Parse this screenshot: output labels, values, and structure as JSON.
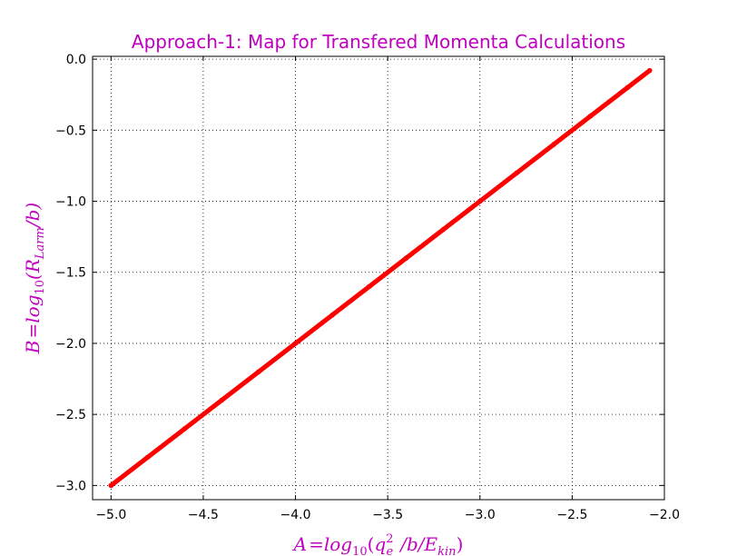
{
  "colors": {
    "title": "#bf00bf",
    "axis_label": "#bf00bf",
    "series": "#ff0000",
    "grid": "#000000",
    "frame": "#000000",
    "background": "#ffffff"
  },
  "chart_data": {
    "type": "scatter",
    "title": "Approach-1: Map for Transfered Momenta Calculations",
    "xlabel": "A=log10(qe2 /b/Ekin)",
    "ylabel": "B=log10(RLarm/b)",
    "xlabel_parts": {
      "lhs": "A",
      "eq": "=",
      "fn": "log",
      "fn_sub": "10",
      "open": "(",
      "q": "q",
      "q_sup": "2",
      "q_sub": "e",
      "rest": "/b/E",
      "e_sub": "kin",
      "close": ")"
    },
    "ylabel_parts": {
      "lhs": "B",
      "eq": "=",
      "fn": "log",
      "fn_sub": "10",
      "open": "(R",
      "r_sub": "Larm",
      "rest": "/b)"
    },
    "xlim": [
      -5.1,
      -2.0
    ],
    "ylim": [
      -3.1,
      0.02
    ],
    "x_ticks": [
      -5.0,
      -4.5,
      -4.0,
      -3.5,
      -3.0,
      -2.5,
      -2.0
    ],
    "x_tick_labels": [
      "−5.0",
      "−4.5",
      "−4.0",
      "−3.5",
      "−3.0",
      "−2.5",
      "−2.0"
    ],
    "y_ticks": [
      0.0,
      -0.5,
      -1.0,
      -1.5,
      -2.0,
      -2.5,
      -3.0
    ],
    "y_tick_labels": [
      "0.0",
      "−0.5",
      "−1.0",
      "−1.5",
      "−2.0",
      "−2.5",
      "−3.0"
    ],
    "grid": true,
    "series": [
      {
        "marker": "dot",
        "x_range": [
          -5.0,
          -2.08
        ],
        "relation": "y = x + 2",
        "points": [
          [
            -5.0,
            -3.0
          ],
          [
            -4.8,
            -2.8
          ],
          [
            -4.6,
            -2.6
          ],
          [
            -4.4,
            -2.4
          ],
          [
            -4.2,
            -2.2
          ],
          [
            -4.0,
            -2.0
          ],
          [
            -3.8,
            -1.8
          ],
          [
            -3.6,
            -1.6
          ],
          [
            -3.4,
            -1.4
          ],
          [
            -3.2,
            -1.2
          ],
          [
            -3.0,
            -1.0
          ],
          [
            -2.8,
            -0.8
          ],
          [
            -2.6,
            -0.6
          ],
          [
            -2.4,
            -0.4
          ],
          [
            -2.2,
            -0.2
          ],
          [
            -2.08,
            -0.08
          ]
        ]
      }
    ]
  }
}
